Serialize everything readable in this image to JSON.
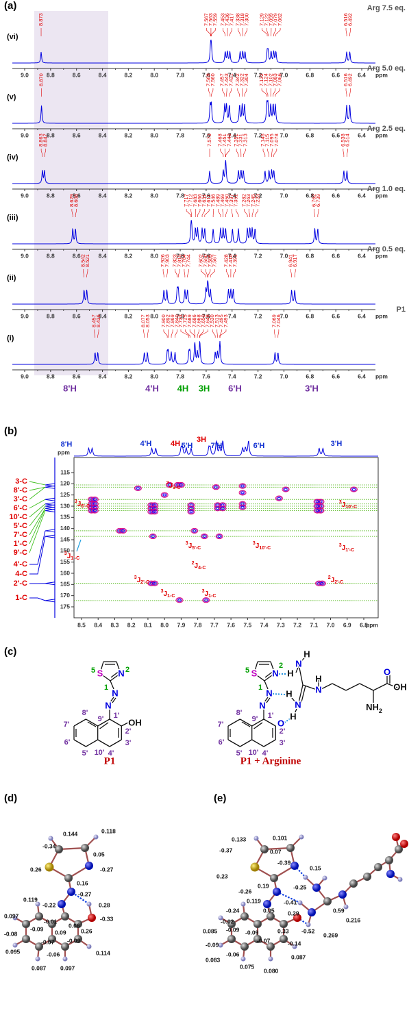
{
  "panel_a": {
    "tag": "(a)",
    "unit": "ppm",
    "ticks": [
      "9.0",
      "8.8",
      "8.6",
      "8.4",
      "8.2",
      "8.0",
      "7.8",
      "7.6",
      "7.4",
      "7.2",
      "7.0",
      "6.8",
      "6.6",
      "6.4"
    ],
    "spectra": [
      {
        "label": "(vi)",
        "condition": "Arg 7.5 eq.",
        "peaks": [
          "8.873",
          "7.567",
          "7.563",
          "7.559",
          "7.453",
          "7.436",
          "7.417",
          "7.338",
          "7.318",
          "7.300",
          "7.129",
          "7.122",
          "7.099",
          "7.079",
          "7.062",
          "6.516",
          "6.492"
        ]
      },
      {
        "label": "(v)",
        "condition": "Arg 5.0 eq.",
        "peaks": [
          "8.870",
          "7.569",
          "7.560",
          "7.457",
          "7.443",
          "7.421",
          "7.342",
          "7.322",
          "7.304",
          "7.132",
          "7.124",
          "7.102",
          "7.083",
          "7.066",
          "6.516",
          "6.492"
        ]
      },
      {
        "label": "(iv)",
        "condition": "Arg 2.5 eq.",
        "peaks": [
          "8.863",
          "8.847",
          "7.573",
          "7.468",
          "7.451",
          "7.448",
          "7.351",
          "7.331",
          "7.313",
          "7.146",
          "7.115",
          "7.095",
          "7.078",
          "6.538",
          "6.514"
        ]
      },
      {
        "label": "(iii)",
        "condition": "Arg 1.0 eq.",
        "peaks": [
          "8.629",
          "8.608",
          "7.717",
          "7.712",
          "7.683",
          "7.666",
          "7.631",
          "7.611",
          "7.546",
          "7.489",
          "7.469",
          "7.450",
          "7.397",
          "7.351",
          "7.282",
          "7.263",
          "7.245",
          "7.223",
          "6.762",
          "6.739"
        ]
      },
      {
        "label": "(ii)",
        "condition": "Arg 0.5 eq.",
        "peaks": [
          "8.542",
          "8.521",
          "7.926",
          "7.903",
          "7.823",
          "7.815",
          "7.764",
          "7.744",
          "7.602",
          "7.590",
          "7.585",
          "7.567",
          "7.428",
          "7.410",
          "7.391",
          "6.941",
          "6.917"
        ]
      },
      {
        "label": "(i)",
        "condition": "P1",
        "peaks": [
          "8.457",
          "8.436",
          "8.077",
          "8.053",
          "7.900",
          "7.892",
          "7.869",
          "7.840",
          "7.733",
          "7.725",
          "7.689",
          "7.686",
          "7.668",
          "7.650",
          "7.648",
          "7.530",
          "7.513",
          "7.495",
          "7.493",
          "7.069",
          "7.046"
        ]
      }
    ],
    "assignments": [
      "8'H",
      "4'H",
      "4H",
      "3H",
      "6'H",
      "3'H"
    ]
  },
  "panel_b": {
    "tag": "(b)",
    "unit": "ppm",
    "proton_labels": [
      "8'H",
      "4'H",
      "4H",
      "3H",
      "5'H",
      "7'H",
      "6'H",
      "3'H"
    ],
    "carbon_labels": [
      "3-C",
      "8'-C",
      "3'-C",
      "6'-C",
      "10'-C",
      "5'-C",
      "7'-C",
      "1'-C",
      "9'-C",
      "4'-C",
      "4-C",
      "2'-C",
      "1-C"
    ],
    "x_ticks": [
      "8.5",
      "8.4",
      "8.3",
      "8.2",
      "8.1",
      "8.0",
      "7.9",
      "7.8",
      "7.7",
      "7.6",
      "7.5",
      "7.4",
      "7.3",
      "7.2",
      "7.1",
      "7.0",
      "6.9",
      "6.8"
    ],
    "y_ticks": [
      115,
      120,
      125,
      130,
      135,
      140,
      145,
      150,
      155,
      160,
      165,
      170,
      175
    ],
    "correlation_lines": [
      120.5,
      121.5,
      127,
      129,
      130,
      131,
      132,
      141,
      143.5,
      164.5,
      172.2
    ],
    "cross_peaks": [
      [
        8.44,
        127
      ],
      [
        8.44,
        129
      ],
      [
        8.44,
        130.5
      ],
      [
        8.44,
        132
      ],
      [
        8.42,
        127
      ],
      [
        8.42,
        129
      ],
      [
        8.42,
        130.5
      ],
      [
        8.42,
        132
      ],
      [
        8.08,
        129.5
      ],
      [
        8.08,
        131
      ],
      [
        8.08,
        132.5
      ],
      [
        8.06,
        129.5
      ],
      [
        8.06,
        131
      ],
      [
        8.06,
        132.5
      ],
      [
        8.07,
        143.5
      ],
      [
        8.08,
        164.5
      ],
      [
        8.06,
        164.5
      ],
      [
        7.97,
        120.5
      ],
      [
        7.92,
        120.5
      ],
      [
        7.9,
        120.5
      ],
      [
        7.84,
        129.5
      ],
      [
        7.84,
        131
      ],
      [
        7.84,
        132.5
      ],
      [
        7.82,
        141
      ],
      [
        7.76,
        143.5
      ],
      [
        7.68,
        129.5
      ],
      [
        7.68,
        131
      ],
      [
        7.65,
        129.5
      ],
      [
        7.65,
        131
      ],
      [
        7.67,
        143.5
      ],
      [
        7.53,
        121
      ],
      [
        7.53,
        124
      ],
      [
        7.53,
        129
      ],
      [
        7.53,
        130.5
      ],
      [
        7.06,
        128
      ],
      [
        7.06,
        130
      ],
      [
        7.06,
        132
      ],
      [
        7.08,
        128
      ],
      [
        7.08,
        130
      ],
      [
        7.08,
        132
      ],
      [
        7.07,
        164.5
      ],
      [
        7.05,
        164.5
      ],
      [
        7.91,
        172
      ],
      [
        7.75,
        172
      ],
      [
        8.27,
        141
      ],
      [
        8.25,
        141
      ],
      [
        7.27,
        122.5
      ],
      [
        6.86,
        122.5
      ],
      [
        7.31,
        126.5
      ],
      [
        7.69,
        121.5
      ],
      [
        8.16,
        122
      ],
      [
        8.0,
        125
      ]
    ],
    "annotations": [
      {
        "pre": "2",
        "main": "J",
        "sub": "3-C"
      },
      {
        "pre": "3",
        "main": "J",
        "sub": "6'-C"
      },
      {
        "pre": "3",
        "main": "J",
        "sub": "1'-C"
      },
      {
        "pre": "3",
        "main": "J",
        "sub": "10'-C"
      },
      {
        "pre": "3",
        "main": "J",
        "sub": "10'-C"
      },
      {
        "pre": "3",
        "main": "J",
        "sub": "1'-C"
      },
      {
        "pre": "3",
        "main": "J",
        "sub": "5'-C"
      },
      {
        "pre": "2",
        "main": "J",
        "sub": "4-C"
      },
      {
        "pre": "3",
        "main": "J",
        "sub": "2'-C"
      },
      {
        "pre": "2",
        "main": "J",
        "sub": "2'-C"
      },
      {
        "pre": "3",
        "main": "J",
        "sub": "1-C"
      },
      {
        "pre": "3",
        "main": "J",
        "sub": "1-C"
      }
    ]
  },
  "panel_c": {
    "tag": "(c)",
    "structures": [
      {
        "name": "P1",
        "atoms": [
          "S",
          "N",
          "N",
          "N",
          "OH"
        ],
        "numbering": [
          "5",
          "1",
          "2",
          "1'",
          "2'",
          "3'",
          "4'",
          "5'",
          "6'",
          "7'",
          "8'",
          "9'",
          "10'"
        ]
      },
      {
        "name": "P1 + Arginine",
        "atoms": [
          "S",
          "N",
          "N",
          "N",
          "O",
          "H",
          "N",
          "H",
          "H",
          "N",
          "H",
          "N",
          "H",
          "O",
          "OH"
        ],
        "numbering": [
          "5",
          "1",
          "2",
          "1'",
          "2'",
          "3'",
          "4'",
          "5'",
          "6'",
          "7'",
          "8'",
          "9'",
          "10'"
        ],
        "amine": {
          "main": "NH",
          "sub": "2"
        }
      }
    ]
  },
  "panel_d": {
    "tag": "(d)",
    "charges": [
      "0.144",
      "0.118",
      "-0.34",
      "0.05",
      "0.26",
      "-0.27",
      "0.16",
      "-0.27",
      "0.119",
      "-0.22",
      "0.28",
      "0.097",
      "-0.01",
      "0.06",
      "-0.33",
      "-0.09",
      "0.09",
      "0.26",
      "-0.08",
      "-0.07",
      "-0.09",
      "0.095",
      "-0.06",
      "0.114",
      "0.087",
      "0.097"
    ]
  },
  "panel_e": {
    "tag": "(e)",
    "charges": [
      "0.133",
      "0.101",
      "-0.37",
      "0.07",
      "0.23",
      "-0.39",
      "0.15",
      "0.19",
      "-0.25",
      "-0.26",
      "-0.41",
      "0.119",
      "-0.24",
      "0.29",
      "-0.02",
      "0.59",
      "0.085",
      "-0.09",
      "0.05",
      "0.216",
      "-0.09",
      "0.33",
      "-0.52",
      "0.269",
      "-0.09",
      "-0.07",
      "-0.14",
      "0.083",
      "-0.06",
      "0.087",
      "0.075",
      "0.080"
    ]
  }
}
